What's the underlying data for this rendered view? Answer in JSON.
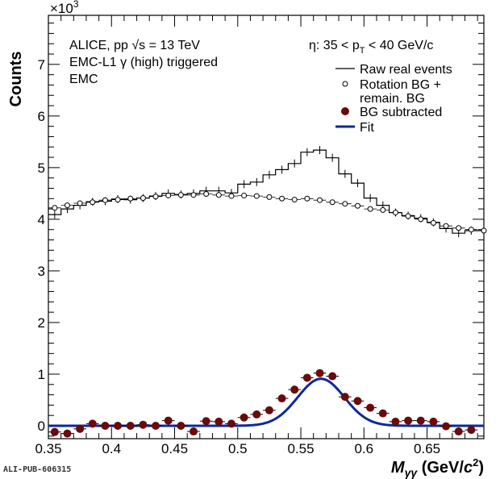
{
  "chart_data": {
    "type": "line",
    "xlabel": "Mγγ (GeV/c²)",
    "xlabel_main": "M",
    "xlabel_sub": "γγ",
    "xlabel_unit": "(GeV/",
    "xlabel_unit_c": "c",
    "xlabel_unit_exp": "2",
    "xlabel_unit_close": ")",
    "ylabel": "Counts",
    "y_multiplier": "×10",
    "y_multiplier_exp": "3",
    "xlim": [
      0.35,
      0.695
    ],
    "ylim": [
      -0.25,
      7.95
    ],
    "x_ticks": [
      0.35,
      0.4,
      0.45,
      0.5,
      0.55,
      0.6,
      0.65
    ],
    "x_tick_labels": [
      "0.35",
      "0.4",
      "0.45",
      "0.5",
      "0.55",
      "0.6",
      "0.65"
    ],
    "y_ticks": [
      0,
      1,
      2,
      3,
      4,
      5,
      6,
      7
    ],
    "y_tick_labels": [
      "0",
      "1",
      "2",
      "3",
      "4",
      "5",
      "6",
      "7"
    ],
    "grid": false,
    "legend_position": "top-right",
    "annotations": {
      "line1": "ALICE, pp  √s = 13 TeV",
      "line2": "EMC-L1 γ (high) triggered",
      "line3": "EMC",
      "eta_label": "η:  35 < p",
      "eta_sub": "T",
      "eta_rest": " <  40 GeV/c"
    },
    "footer": "ALI-PUB-606315",
    "series": [
      {
        "name": "Raw real events",
        "style": "histogram",
        "color": "#000000",
        "bin_width": 0.01,
        "x": [
          0.355,
          0.365,
          0.375,
          0.385,
          0.395,
          0.405,
          0.415,
          0.425,
          0.435,
          0.445,
          0.455,
          0.465,
          0.475,
          0.485,
          0.495,
          0.505,
          0.515,
          0.525,
          0.535,
          0.545,
          0.555,
          0.565,
          0.575,
          0.585,
          0.595,
          0.605,
          0.615,
          0.625,
          0.635,
          0.645,
          0.655,
          0.665,
          0.675,
          0.685,
          0.695
        ],
        "y": [
          4.09,
          4.2,
          4.27,
          4.34,
          4.35,
          4.39,
          4.38,
          4.41,
          4.45,
          4.5,
          4.48,
          4.5,
          4.55,
          4.55,
          4.51,
          4.68,
          4.72,
          4.86,
          4.96,
          5.08,
          5.3,
          5.34,
          5.19,
          4.88,
          4.7,
          4.41,
          4.27,
          4.13,
          4.07,
          4.02,
          3.94,
          3.82,
          3.73,
          3.78,
          3.78
        ]
      },
      {
        "name": "Rotation BG + remain. BG",
        "name_line1": "Rotation BG +",
        "name_line2": "remain. BG",
        "style": "open-markers",
        "color": "#000000",
        "x": [
          0.355,
          0.365,
          0.375,
          0.385,
          0.395,
          0.405,
          0.415,
          0.425,
          0.435,
          0.445,
          0.455,
          0.465,
          0.475,
          0.485,
          0.495,
          0.505,
          0.515,
          0.525,
          0.535,
          0.545,
          0.555,
          0.565,
          0.575,
          0.585,
          0.595,
          0.605,
          0.615,
          0.625,
          0.635,
          0.645,
          0.655,
          0.665,
          0.675,
          0.685,
          0.695
        ],
        "y": [
          4.22,
          4.27,
          4.31,
          4.33,
          4.37,
          4.38,
          4.4,
          4.41,
          4.44,
          4.46,
          4.47,
          4.47,
          4.49,
          4.47,
          4.45,
          4.46,
          4.45,
          4.43,
          4.4,
          4.38,
          4.4,
          4.37,
          4.33,
          4.3,
          4.26,
          4.2,
          4.18,
          4.13,
          4.06,
          4.0,
          3.93,
          3.87,
          3.83,
          3.8,
          3.78
        ]
      },
      {
        "name": "BG subtracted",
        "style": "filled-markers",
        "color": "#6b0a0a",
        "x": [
          0.355,
          0.365,
          0.375,
          0.385,
          0.395,
          0.405,
          0.415,
          0.425,
          0.435,
          0.445,
          0.455,
          0.465,
          0.475,
          0.485,
          0.495,
          0.505,
          0.515,
          0.525,
          0.535,
          0.545,
          0.555,
          0.565,
          0.575,
          0.585,
          0.595,
          0.605,
          0.615,
          0.625,
          0.635,
          0.645,
          0.655,
          0.665,
          0.675,
          0.685
        ],
        "y": [
          -0.12,
          -0.15,
          -0.06,
          0.04,
          0.0,
          0.0,
          0.0,
          0.02,
          0.0,
          0.1,
          0.0,
          -0.11,
          0.09,
          0.08,
          0.04,
          0.16,
          0.22,
          0.3,
          0.53,
          0.7,
          0.93,
          1.02,
          0.96,
          0.56,
          0.48,
          0.35,
          0.24,
          0.08,
          0.1,
          0.1,
          0.08,
          -0.01,
          -0.11,
          -0.08
        ]
      },
      {
        "name": "Fit",
        "style": "line",
        "color": "#0a2a9a",
        "gaussian": {
          "amplitude": 0.91,
          "mean": 0.566,
          "sigma": 0.0185,
          "baseline": 0.0
        }
      }
    ]
  }
}
